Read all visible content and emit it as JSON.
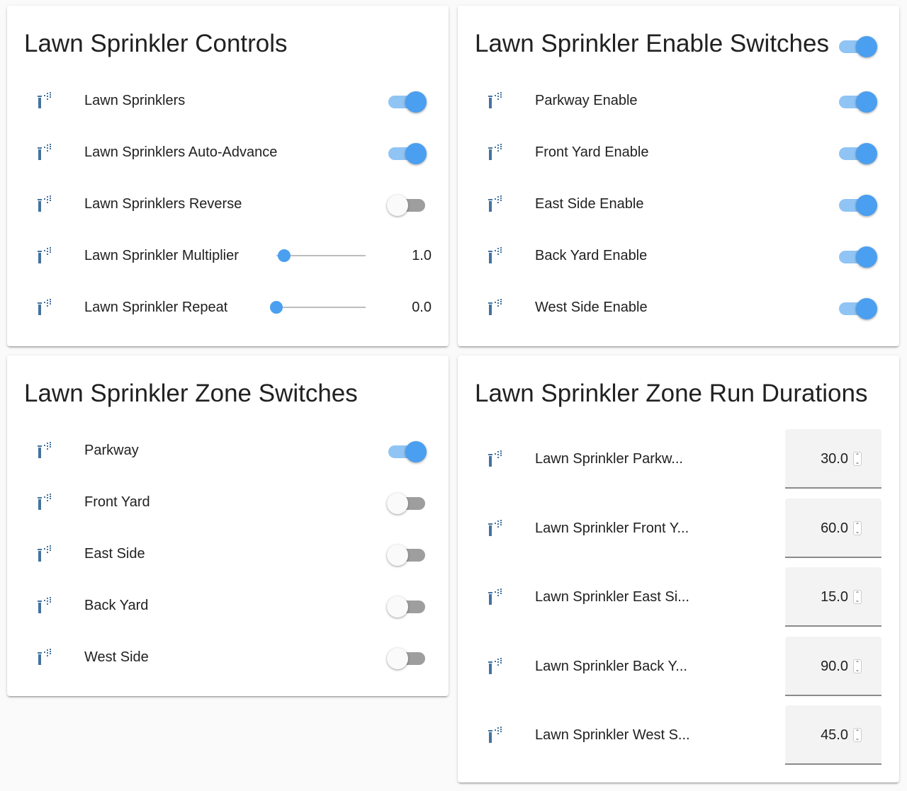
{
  "colors": {
    "accent": "#4a9ff0",
    "icon": "#44739e"
  },
  "icon": "sprinkler-icon",
  "controls": {
    "title": "Lawn Sprinkler Controls",
    "rows": [
      {
        "label": "Lawn Sprinklers",
        "type": "toggle",
        "on": true
      },
      {
        "label": "Lawn Sprinklers Auto-Advance",
        "type": "toggle",
        "on": true
      },
      {
        "label": "Lawn Sprinklers Reverse",
        "type": "toggle",
        "on": false
      },
      {
        "label": "Lawn Sprinkler Multiplier",
        "type": "slider",
        "value": "1.0",
        "fill_fraction": 0.09
      },
      {
        "label": "Lawn Sprinkler Repeat",
        "type": "slider",
        "value": "0.0",
        "fill_fraction": 0.0
      }
    ]
  },
  "enable": {
    "title": "Lawn Sprinkler Enable Switches",
    "header_toggle_on": true,
    "rows": [
      {
        "label": "Parkway Enable",
        "on": true
      },
      {
        "label": "Front Yard Enable",
        "on": true
      },
      {
        "label": "East Side Enable",
        "on": true
      },
      {
        "label": "Back Yard Enable",
        "on": true
      },
      {
        "label": "West Side Enable",
        "on": true
      }
    ]
  },
  "zones": {
    "title": "Lawn Sprinkler Zone Switches",
    "rows": [
      {
        "label": "Parkway",
        "on": true
      },
      {
        "label": "Front Yard",
        "on": false
      },
      {
        "label": "East Side",
        "on": false
      },
      {
        "label": "Back Yard",
        "on": false
      },
      {
        "label": "West Side",
        "on": false
      }
    ]
  },
  "durations": {
    "title": "Lawn Sprinkler Zone Run Durations",
    "rows": [
      {
        "label": "Lawn Sprinkler Parkw...",
        "value": "30.0"
      },
      {
        "label": "Lawn Sprinkler Front Y...",
        "value": "60.0"
      },
      {
        "label": "Lawn Sprinkler East Si...",
        "value": "15.0"
      },
      {
        "label": "Lawn Sprinkler Back Y...",
        "value": "90.0"
      },
      {
        "label": "Lawn Sprinkler West S...",
        "value": "45.0"
      }
    ]
  }
}
